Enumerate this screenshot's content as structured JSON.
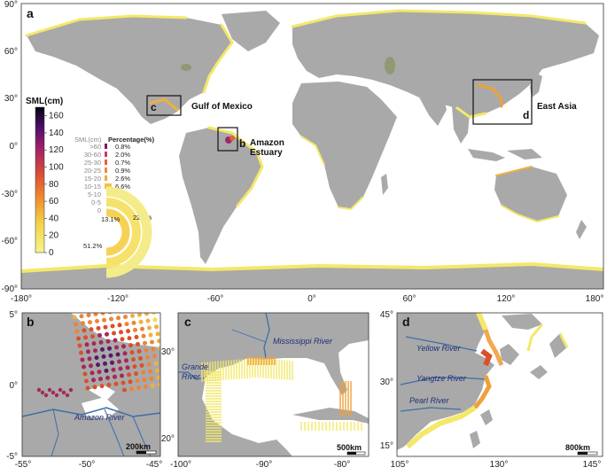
{
  "panel_a": {
    "letter": "a",
    "lat_ticks": [
      "90°",
      "60°",
      "30°",
      "0°",
      "-30°",
      "-60°",
      "-90°"
    ],
    "lon_ticks": [
      "-180°",
      "-120°",
      "-60°",
      "0°",
      "60°",
      "120°",
      "180°"
    ],
    "regions": [
      {
        "box": "c",
        "label": "Gulf of Mexico"
      },
      {
        "box": "b",
        "label": "Amazon Estuary"
      },
      {
        "box": "d",
        "label": "East Asia"
      }
    ],
    "colorbar": {
      "title": "SML(cm)",
      "ticks": [
        "160",
        "140",
        "120",
        "100",
        "80",
        "60",
        "40",
        "20",
        "0"
      ],
      "min": 0,
      "max": 170
    },
    "distribution": {
      "header_class": "SML(cm)",
      "header_pct": "Percentage(%)",
      "rows": [
        {
          "cls": ">60",
          "pct": "0.8%"
        },
        {
          "cls": "30-60",
          "pct": "2.0%"
        },
        {
          "cls": "25-30",
          "pct": "0.7%"
        },
        {
          "cls": "20-25",
          "pct": "0.9%"
        },
        {
          "cls": "15-20",
          "pct": "2.6%"
        },
        {
          "cls": "10-15",
          "pct": "6.6%"
        },
        {
          "cls": "5-10",
          "pct": "13.1%"
        },
        {
          "cls": "0-5",
          "pct": "22.1%"
        },
        {
          "cls": "0",
          "pct": "51.2%"
        }
      ]
    }
  },
  "panel_b": {
    "letter": "b",
    "lat_ticks": [
      "5°",
      "0°",
      "-5°"
    ],
    "lon_ticks": [
      "-55°",
      "-50°",
      "-45°"
    ],
    "river": "Amazon River",
    "scale": "200km"
  },
  "panel_c": {
    "letter": "c",
    "lat_ticks": [
      "30°",
      "20°"
    ],
    "lon_ticks": [
      "-100°",
      "-90°",
      "-80°"
    ],
    "rivers": [
      "Mississippi River",
      "Grande",
      "River"
    ],
    "scale": "500km"
  },
  "panel_d": {
    "letter": "d",
    "lat_ticks": [
      "45°",
      "30°",
      "15°"
    ],
    "lon_ticks": [
      "105°",
      "130°",
      "145°"
    ],
    "rivers": [
      "Yellow River",
      "Yangtze River",
      "Pearl River"
    ],
    "scale": "800km"
  },
  "colors": {
    "land": "#a9a9a9",
    "ocean": "#ffffff",
    "low": "#f3e86a",
    "mid": "#f0a03a",
    "high": "#d9502a",
    "peak": "#5a1a6a",
    "river": "#3a6fa8"
  }
}
